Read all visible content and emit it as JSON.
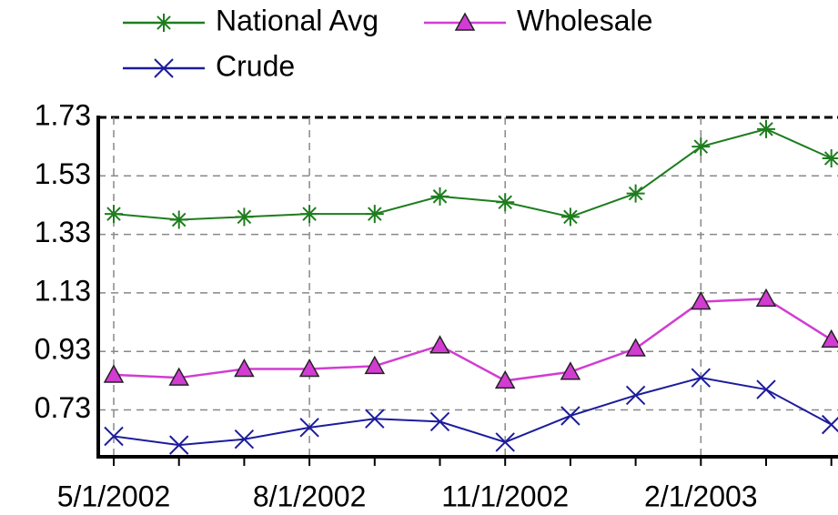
{
  "chart_data": {
    "type": "line",
    "categories": [
      "5/1/2002",
      null,
      null,
      "8/1/2002",
      null,
      null,
      "11/1/2002",
      null,
      null,
      "2/1/2003",
      null,
      null
    ],
    "series": [
      {
        "name": "National Avg",
        "color": "#1e7d1e",
        "marker": "star",
        "values": [
          1.4,
          1.38,
          1.39,
          1.4,
          1.4,
          1.46,
          1.44,
          1.39,
          1.47,
          1.63,
          1.69,
          1.59
        ]
      },
      {
        "name": "Wholesale",
        "color": "#d23cd2",
        "marker": "triangle",
        "values": [
          0.85,
          0.84,
          0.87,
          0.87,
          0.88,
          0.95,
          0.83,
          0.86,
          0.94,
          1.1,
          1.11,
          0.97
        ]
      },
      {
        "name": "Crude",
        "color": "#1c1c9c",
        "marker": "x",
        "values": [
          0.64,
          0.61,
          0.63,
          0.67,
          0.7,
          0.69,
          0.62,
          0.71,
          0.78,
          0.84,
          0.8,
          0.68
        ]
      }
    ],
    "ylim": [
      0.57,
      1.73
    ],
    "yticks": [
      0.73,
      0.93,
      1.13,
      1.33,
      1.53,
      1.73
    ],
    "grid": true
  }
}
